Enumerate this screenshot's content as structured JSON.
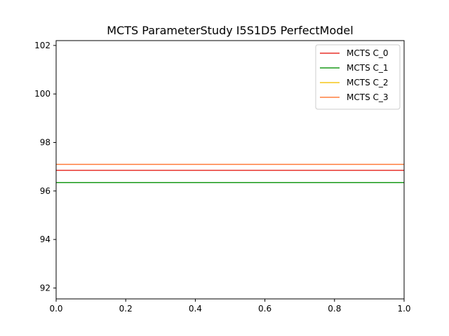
{
  "chart_data": {
    "type": "line",
    "title": "MCTS ParameterStudy I5S1D5 PerfectModel",
    "xlabel": "",
    "ylabel": "",
    "xlim": [
      0.0,
      1.0
    ],
    "ylim": [
      91.55,
      102.2
    ],
    "x_ticks": [
      "0.0",
      "0.2",
      "0.4",
      "0.6",
      "0.8",
      "1.0"
    ],
    "x_tick_values": [
      0.0,
      0.2,
      0.4,
      0.6,
      0.8,
      1.0
    ],
    "y_ticks": [
      "92",
      "94",
      "96",
      "98",
      "100",
      "102"
    ],
    "y_tick_values": [
      92,
      94,
      96,
      98,
      100,
      102
    ],
    "grid": false,
    "legend_position": "top-right",
    "series": [
      {
        "name": "MCTS C_0",
        "color": "#e8302a",
        "x": [
          0.0,
          1.0
        ],
        "y": [
          96.85,
          96.85
        ]
      },
      {
        "name": "MCTS C_1",
        "color": "#1a9a1a",
        "x": [
          0.0,
          1.0
        ],
        "y": [
          96.35,
          96.35
        ]
      },
      {
        "name": "MCTS C_2",
        "color": "#f5c518",
        "x": [
          0.0,
          1.0
        ],
        "y": [
          97.1,
          97.1
        ]
      },
      {
        "name": "MCTS C_3",
        "color": "#ff7f3f",
        "x": [
          0.0,
          1.0
        ],
        "y": [
          97.1,
          97.1
        ]
      }
    ]
  }
}
